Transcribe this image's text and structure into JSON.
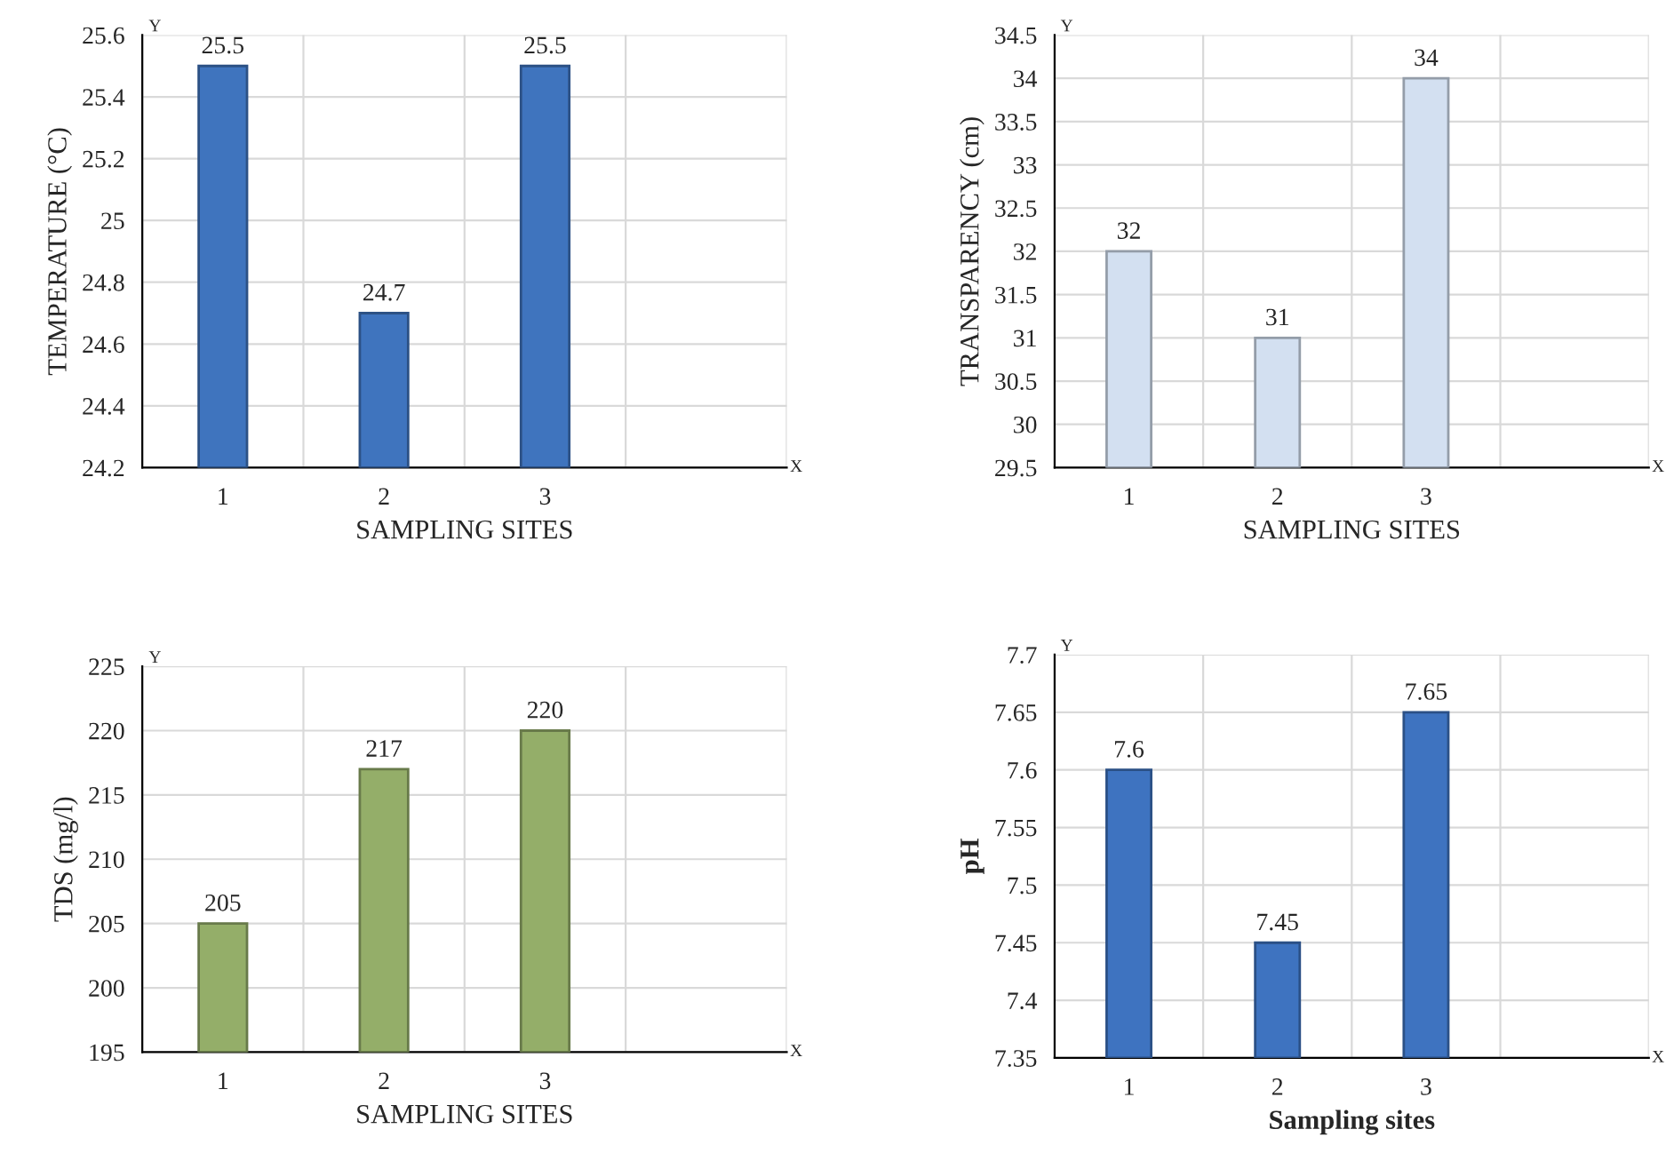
{
  "chart_data": [
    {
      "type": "bar",
      "xlabel": "SAMPLING SITES",
      "ylabel": "TEMPERATURE (°C)",
      "categories": [
        "1",
        "2",
        "3",
        null
      ],
      "values": [
        25.5,
        24.7,
        25.5,
        null
      ],
      "color": "#3f74be",
      "ylim": [
        24.2,
        25.6
      ],
      "yticks": [
        24.2,
        24.4,
        24.6,
        24.8,
        25,
        25.2,
        25.4,
        25.6
      ],
      "grid": true,
      "data_labels": true,
      "annotations": [
        "Y",
        "X"
      ]
    },
    {
      "type": "bar",
      "xlabel": "SAMPLING SITES",
      "ylabel": "TRANSPARENCY (cm)",
      "categories": [
        "1",
        "2",
        "3",
        null
      ],
      "values": [
        32,
        31,
        34,
        null
      ],
      "color": "#d3e0f1",
      "ylim": [
        29.5,
        34.5
      ],
      "yticks": [
        29.5,
        30,
        30.5,
        31,
        31.5,
        32,
        32.5,
        33,
        33.5,
        34,
        34.5
      ],
      "grid": true,
      "data_labels": true,
      "annotations": [
        "Y",
        "X"
      ]
    },
    {
      "type": "bar",
      "xlabel": "SAMPLING SITES",
      "ylabel": "TDS (mg/l)",
      "categories": [
        "1",
        "2",
        "3",
        null
      ],
      "values": [
        205,
        217,
        220,
        null
      ],
      "color": "#94ae69",
      "ylim": [
        195,
        225
      ],
      "yticks": [
        195,
        200,
        205,
        210,
        215,
        220,
        225
      ],
      "grid": true,
      "data_labels": true,
      "annotations": [
        "Y",
        "X"
      ]
    },
    {
      "type": "bar",
      "xlabel": "Sampling sites",
      "ylabel": "pH",
      "categories": [
        "1",
        "2",
        "3",
        null
      ],
      "values": [
        7.6,
        7.45,
        7.65,
        null
      ],
      "color": "#3e73c0",
      "ylim": [
        7.35,
        7.7
      ],
      "yticks": [
        7.35,
        7.4,
        7.45,
        7.5,
        7.55,
        7.6,
        7.65,
        7.7
      ],
      "grid": true,
      "data_labels": true,
      "annotations": [
        "Y",
        "X"
      ]
    }
  ]
}
